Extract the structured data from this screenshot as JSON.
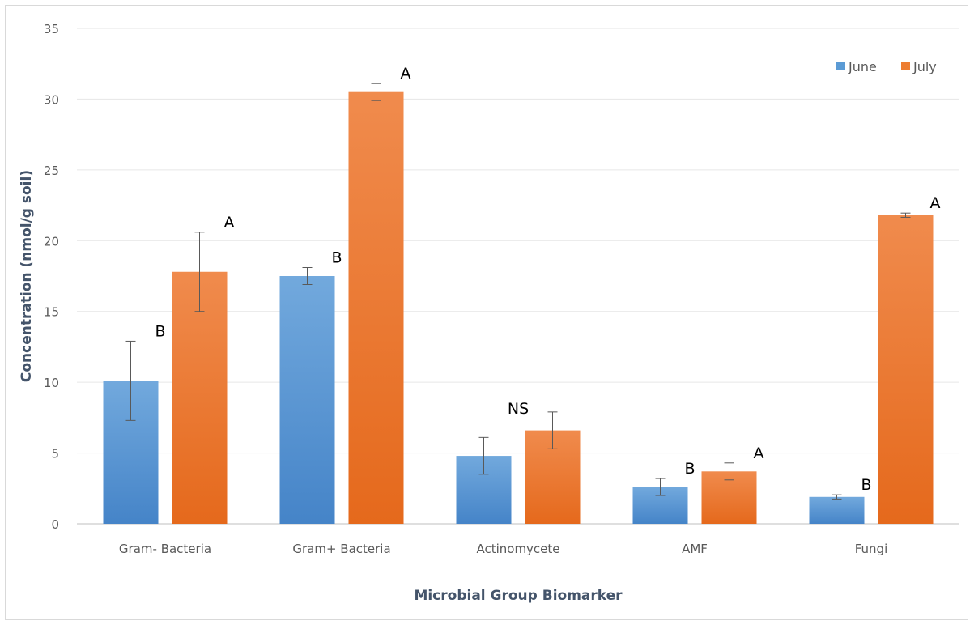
{
  "chart_data": {
    "type": "bar",
    "title": "",
    "xlabel": "Microbial Group Biomarker",
    "ylabel": "Concentration (nmol/g soil)",
    "ylim": [
      0,
      35
    ],
    "yticks": [
      0,
      5,
      10,
      15,
      20,
      25,
      30,
      35
    ],
    "grid": true,
    "legend_position": "top-right",
    "categories": [
      "Gram- Bacteria",
      "Gram+ Bacteria",
      "Actinomycete",
      "AMF",
      "Fungi"
    ],
    "series": [
      {
        "name": "June",
        "color": "#5b9bd5",
        "values": [
          10.1,
          17.5,
          4.8,
          2.6,
          1.9
        ],
        "errors": [
          2.8,
          0.6,
          1.3,
          0.6,
          0.15
        ],
        "labels": [
          "B",
          "B",
          "",
          "B",
          "B"
        ]
      },
      {
        "name": "July",
        "color": "#ed7d31",
        "values": [
          17.8,
          30.5,
          6.6,
          3.7,
          21.8
        ],
        "errors": [
          2.8,
          0.6,
          1.3,
          0.6,
          0.15
        ],
        "labels": [
          "A",
          "A",
          "",
          "A",
          "A"
        ]
      }
    ],
    "group_annotations": [
      "",
      "",
      "NS",
      "",
      ""
    ]
  }
}
